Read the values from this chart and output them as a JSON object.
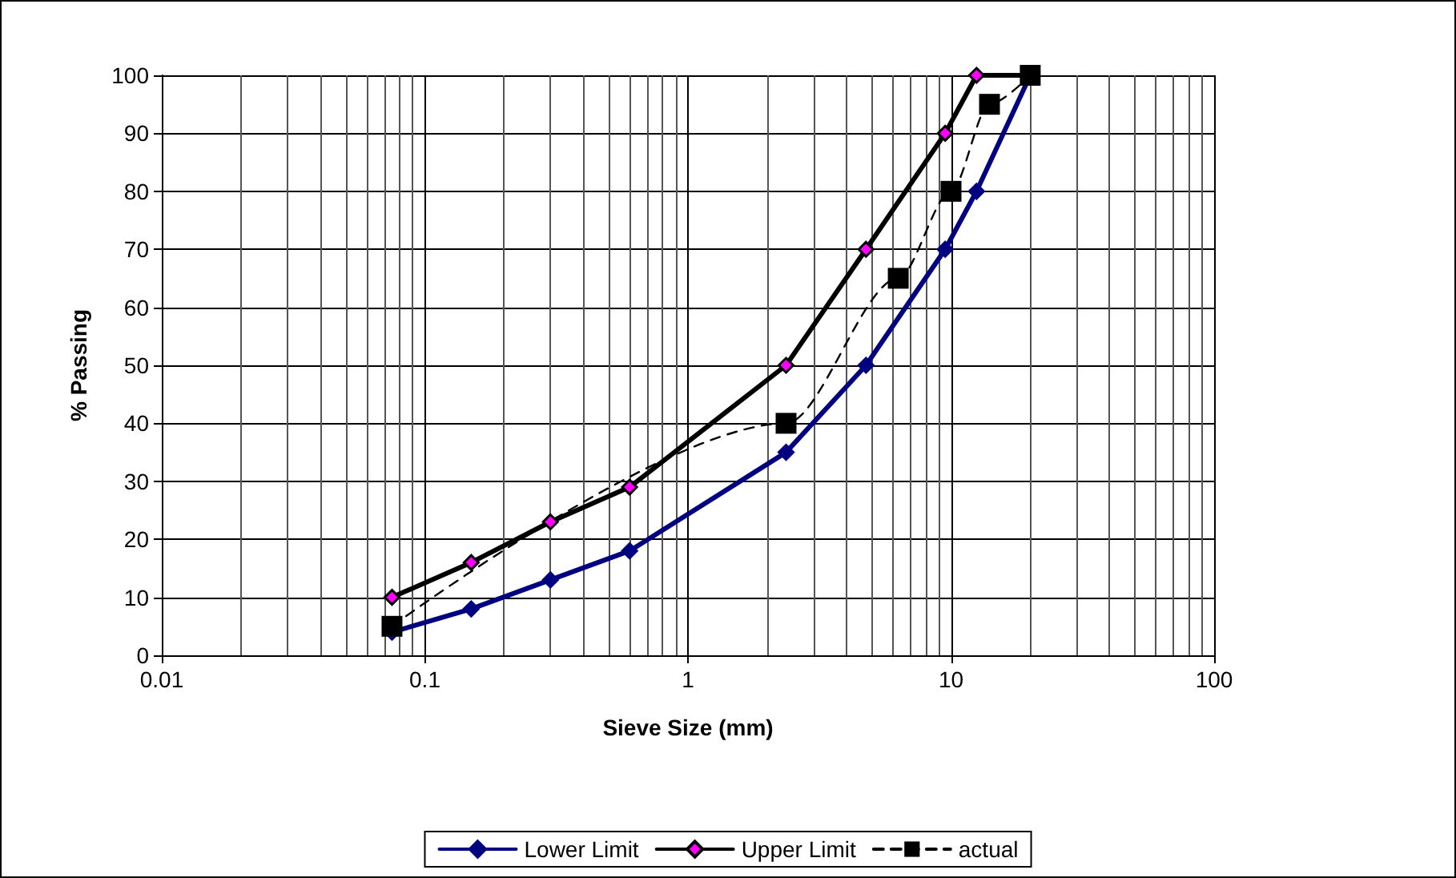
{
  "chart_data": {
    "type": "line",
    "xlabel": "Sieve Size (mm)",
    "ylabel": "% Passing",
    "log": "x",
    "grid": true,
    "legend": "bottom",
    "xlim": [
      0.01,
      100
    ],
    "xticks": [
      0.01,
      0.1,
      1,
      10,
      100
    ],
    "ylim": [
      0,
      100
    ],
    "yticks": [
      0,
      10,
      20,
      30,
      40,
      50,
      60,
      70,
      80,
      90,
      100
    ],
    "series": [
      {
        "name": "Lower Limit",
        "color": "#000080",
        "marker": "diamond",
        "line_style": "solid",
        "x": [
          0.075,
          0.15,
          0.3,
          0.6,
          2.36,
          4.75,
          9.5,
          12.5,
          20
        ],
        "values": [
          4,
          8,
          13,
          18,
          35,
          50,
          70,
          80,
          100
        ]
      },
      {
        "name": "Upper Limit",
        "color": "#000000",
        "marker": "diamond",
        "line_style": "solid",
        "x": [
          0.075,
          0.15,
          0.3,
          0.6,
          2.36,
          4.75,
          9.5,
          12.5,
          20
        ],
        "values": [
          10,
          16,
          23,
          29,
          50,
          70,
          90,
          100,
          100
        ]
      },
      {
        "name": "actual",
        "color": "#000000",
        "marker": "square",
        "line_style": "dashed",
        "x": [
          0.075,
          2.36,
          6.3,
          10,
          14,
          20
        ],
        "values": [
          5,
          40,
          65,
          80,
          95,
          100
        ]
      }
    ]
  }
}
